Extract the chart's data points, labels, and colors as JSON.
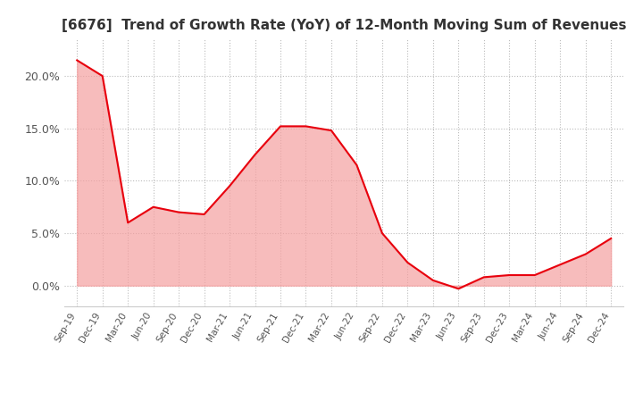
{
  "title": "[6676]  Trend of Growth Rate (YoY) of 12-Month Moving Sum of Revenues",
  "title_fontsize": 11,
  "line_color": "#e8000d",
  "fill_color": "#f5a0a0",
  "background_color": "#ffffff",
  "plot_bg_color": "#ffffff",
  "grid_color": "#bbbbbb",
  "ylim": [
    -0.02,
    0.235
  ],
  "yticks": [
    0.0,
    0.05,
    0.1,
    0.15,
    0.2
  ],
  "ytick_labels": [
    "0.0%",
    "5.0%",
    "10.0%",
    "15.0%",
    "20.0%"
  ],
  "x_labels": [
    "Sep-19",
    "Dec-19",
    "Mar-20",
    "Jun-20",
    "Sep-20",
    "Dec-20",
    "Mar-21",
    "Jun-21",
    "Sep-21",
    "Dec-21",
    "Mar-22",
    "Jun-22",
    "Sep-22",
    "Dec-22",
    "Mar-23",
    "Jun-23",
    "Sep-23",
    "Dec-23",
    "Mar-24",
    "Jun-24",
    "Sep-24",
    "Dec-24"
  ],
  "y_values": [
    0.215,
    0.2,
    0.06,
    0.075,
    0.07,
    0.068,
    0.095,
    0.125,
    0.152,
    0.152,
    0.148,
    0.115,
    0.05,
    0.022,
    0.005,
    -0.003,
    0.008,
    0.01,
    0.01,
    0.02,
    0.03,
    0.045
  ]
}
